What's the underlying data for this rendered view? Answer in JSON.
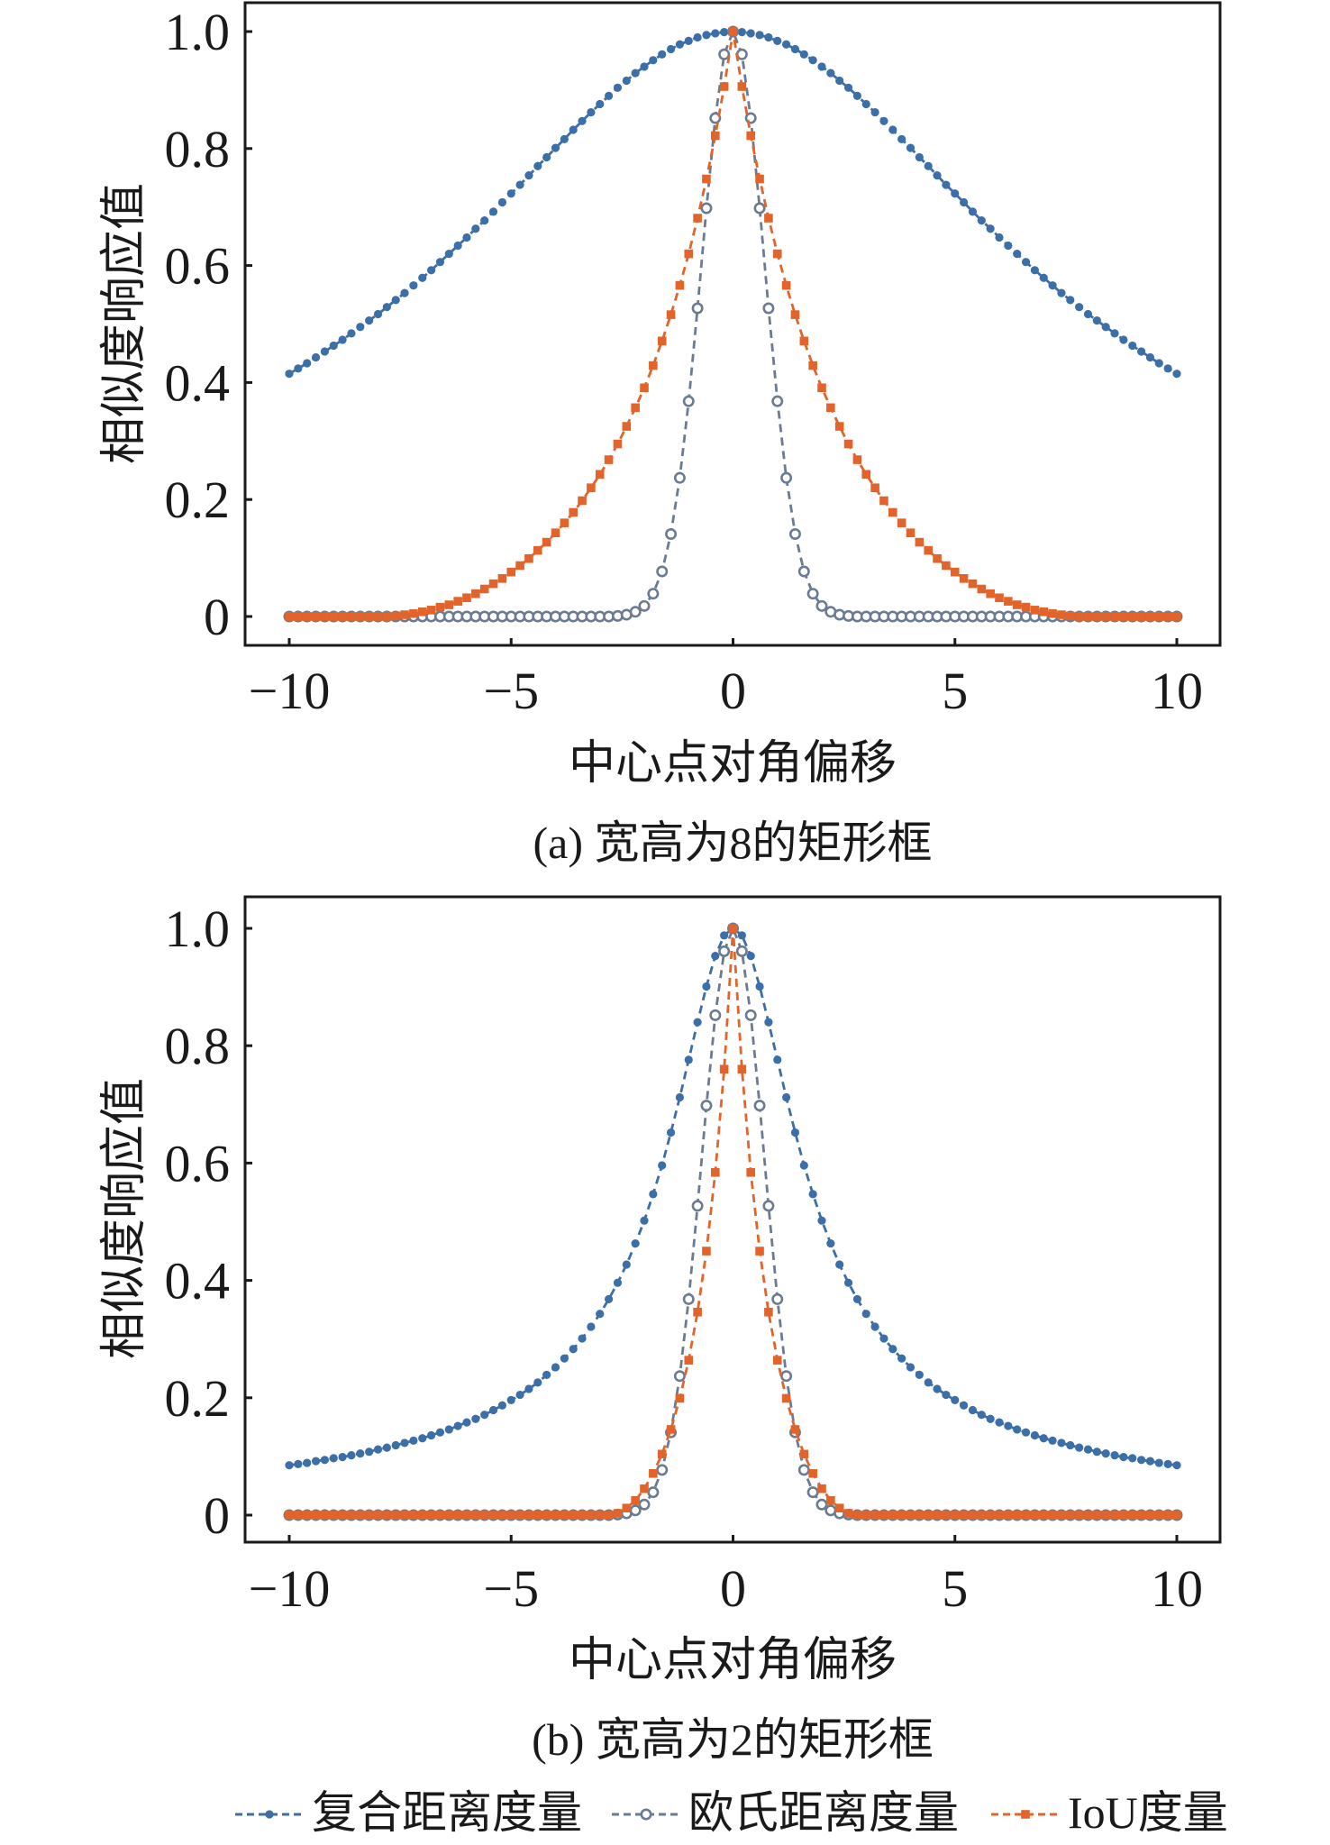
{
  "legend": [
    {
      "label": "复合距离度量",
      "color": "#3c6ea8",
      "marker": "filled-circle"
    },
    {
      "label": "欧氏距离度量",
      "color": "#6b7b92",
      "marker": "open-circle"
    },
    {
      "label": "IoU度量",
      "color": "#e2642a",
      "marker": "filled-square"
    }
  ],
  "chart_data": [
    {
      "type": "line",
      "caption": "(a) 宽高为8的矩形框",
      "xlabel": "中心点对角偏移",
      "ylabel": "相似度响应值",
      "xlim": [
        -10,
        10
      ],
      "ylim": [
        0,
        1
      ],
      "xticks": [
        "−10",
        "−5",
        "0",
        "5",
        "10"
      ],
      "xtick_values": [
        -10,
        -5,
        0,
        5,
        10
      ],
      "yticks": [
        "0",
        "0.2",
        "0.4",
        "0.6",
        "0.8",
        "1.0"
      ],
      "ytick_values": [
        0,
        0.2,
        0.4,
        0.6,
        0.8,
        1.0
      ],
      "x": {
        "min": -10,
        "max": 10,
        "step": 0.2,
        "symmetric_about_zero": true
      },
      "series": [
        {
          "name": "复合距离度量",
          "values_x_ge_0": [
            1,
            0.999,
            0.997,
            0.994,
            0.99,
            0.984,
            0.978,
            0.97,
            0.961,
            0.951,
            0.94,
            0.929,
            0.916,
            0.904,
            0.89,
            0.876,
            0.862,
            0.847,
            0.832,
            0.816,
            0.801,
            0.785,
            0.77,
            0.754,
            0.738,
            0.723,
            0.708,
            0.692,
            0.677,
            0.663,
            0.648,
            0.634,
            0.62,
            0.606,
            0.592,
            0.579,
            0.566,
            0.553,
            0.541,
            0.529,
            0.517,
            0.506,
            0.495,
            0.484,
            0.473,
            0.463,
            0.453,
            0.443,
            0.433,
            0.424,
            0.415
          ]
        },
        {
          "name": "欧氏距离度量",
          "values_x_ge_0": [
            1,
            0.961,
            0.852,
            0.698,
            0.527,
            0.368,
            0.237,
            0.141,
            0.077,
            0.039,
            0.018,
            0.008,
            0.003,
            0.001,
            0,
            0,
            0,
            0,
            0,
            0,
            0,
            0,
            0,
            0,
            0,
            0,
            0,
            0,
            0,
            0,
            0,
            0,
            0,
            0,
            0,
            0,
            0,
            0,
            0,
            0,
            0,
            0,
            0,
            0,
            0,
            0,
            0,
            0,
            0,
            0,
            0
          ]
        },
        {
          "name": "IoU度量",
          "values_x_ge_0": [
            1,
            0.906,
            0.822,
            0.748,
            0.681,
            0.62,
            0.566,
            0.516,
            0.471,
            0.429,
            0.391,
            0.357,
            0.325,
            0.295,
            0.268,
            0.243,
            0.22,
            0.198,
            0.178,
            0.16,
            0.143,
            0.127,
            0.113,
            0.099,
            0.087,
            0.076,
            0.065,
            0.056,
            0.047,
            0.039,
            0.032,
            0.026,
            0.02,
            0.016,
            0.011,
            0.008,
            0.005,
            0.003,
            0.001,
            0,
            0,
            0,
            0,
            0,
            0,
            0,
            0,
            0,
            0,
            0,
            0
          ]
        }
      ]
    },
    {
      "type": "line",
      "caption": "(b) 宽高为2的矩形框",
      "xlabel": "中心点对角偏移",
      "ylabel": "相似度响应值",
      "xlim": [
        -10,
        10
      ],
      "ylim": [
        0,
        1
      ],
      "xticks": [
        "−10",
        "−5",
        "0",
        "5",
        "10"
      ],
      "xtick_values": [
        -10,
        -5,
        0,
        5,
        10
      ],
      "yticks": [
        "0",
        "0.2",
        "0.4",
        "0.6",
        "0.8",
        "1.0"
      ],
      "ytick_values": [
        0,
        0.2,
        0.4,
        0.6,
        0.8,
        1.0
      ],
      "x": {
        "min": -10,
        "max": 10,
        "step": 0.2,
        "symmetric_about_zero": true
      },
      "series": [
        {
          "name": "复合距离度量",
          "values_x_ge_0": [
            1,
            0.988,
            0.953,
            0.901,
            0.84,
            0.776,
            0.712,
            0.652,
            0.596,
            0.547,
            0.502,
            0.463,
            0.427,
            0.396,
            0.368,
            0.343,
            0.321,
            0.301,
            0.283,
            0.267,
            0.252,
            0.239,
            0.226,
            0.215,
            0.205,
            0.196,
            0.187,
            0.179,
            0.171,
            0.164,
            0.158,
            0.152,
            0.146,
            0.141,
            0.136,
            0.131,
            0.127,
            0.123,
            0.119,
            0.115,
            0.112,
            0.108,
            0.105,
            0.102,
            0.099,
            0.097,
            0.094,
            0.092,
            0.089,
            0.087,
            0.085
          ]
        },
        {
          "name": "欧氏距离度量",
          "values_x_ge_0": [
            1,
            0.961,
            0.852,
            0.698,
            0.527,
            0.368,
            0.237,
            0.141,
            0.077,
            0.039,
            0.018,
            0.008,
            0.003,
            0.001,
            0,
            0,
            0,
            0,
            0,
            0,
            0,
            0,
            0,
            0,
            0,
            0,
            0,
            0,
            0,
            0,
            0,
            0,
            0,
            0,
            0,
            0,
            0,
            0,
            0,
            0,
            0,
            0,
            0,
            0,
            0,
            0,
            0,
            0,
            0,
            0,
            0
          ]
        },
        {
          "name": "IoU度量",
          "values_x_ge_0": [
            1,
            0.76,
            0.584,
            0.45,
            0.346,
            0.264,
            0.199,
            0.146,
            0.104,
            0.071,
            0.045,
            0.025,
            0.012,
            0.003,
            0,
            0,
            0,
            0,
            0,
            0,
            0,
            0,
            0,
            0,
            0,
            0,
            0,
            0,
            0,
            0,
            0,
            0,
            0,
            0,
            0,
            0,
            0,
            0,
            0,
            0,
            0,
            0,
            0,
            0,
            0,
            0,
            0,
            0,
            0,
            0,
            0
          ]
        }
      ]
    }
  ]
}
